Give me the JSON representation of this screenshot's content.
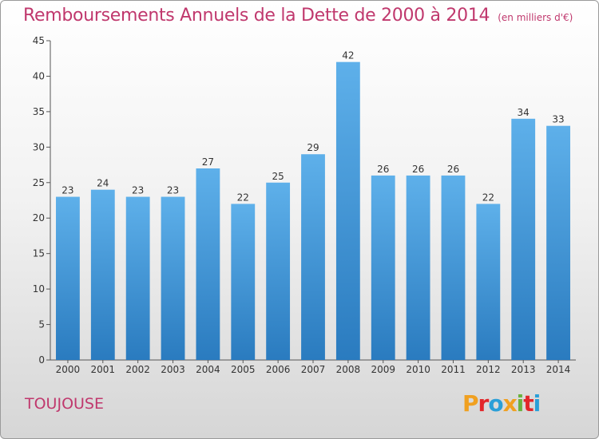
{
  "chart_data": {
    "type": "bar",
    "title": "Remboursements Annuels de la Dette de 2000 à 2014",
    "unit": "(en milliers d'€)",
    "categories": [
      "2000",
      "2001",
      "2002",
      "2003",
      "2004",
      "2005",
      "2006",
      "2007",
      "2008",
      "2009",
      "2010",
      "2011",
      "2012",
      "2013",
      "2014"
    ],
    "values": [
      23,
      24,
      23,
      23,
      27,
      22,
      25,
      29,
      42,
      26,
      26,
      26,
      22,
      34,
      33
    ],
    "ylim": [
      0,
      45
    ],
    "yticks": [
      0,
      5,
      10,
      15,
      20,
      25,
      30,
      35,
      40,
      45
    ],
    "grid": false,
    "bar_color_top": "#5eb0ea",
    "bar_color_bottom": "#2a7bbf"
  },
  "location": "TOUJOUSE",
  "logo": {
    "text": "Proxiti",
    "letter_colors": [
      "#f0a020",
      "#e3262a",
      "#2a9fd8",
      "#f0a020",
      "#6ab23e",
      "#e3262a",
      "#2a9fd8"
    ]
  }
}
